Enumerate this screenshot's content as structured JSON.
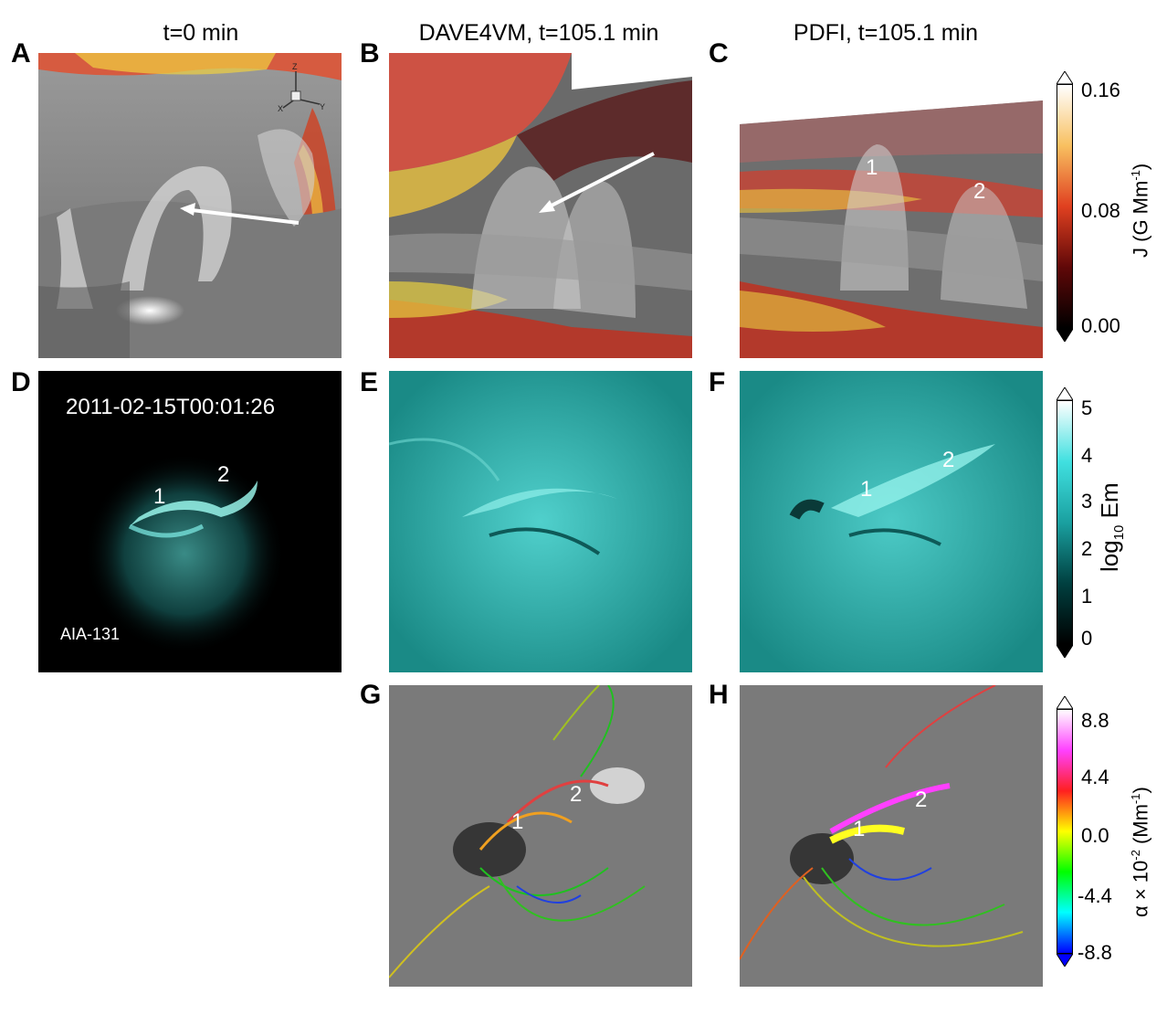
{
  "columns": {
    "a": "t=0 min",
    "b": "DAVE4VM, t=105.1 min",
    "c": "PDFI, t=105.1 min"
  },
  "panel_labels": {
    "A": "A",
    "B": "B",
    "C": "C",
    "D": "D",
    "E": "E",
    "F": "F",
    "G": "G",
    "H": "H"
  },
  "panel_d": {
    "timestamp": "2011-02-15T00:01:26",
    "instrument": "AIA-131",
    "loop1": "1",
    "loop2": "2"
  },
  "panel_c": {
    "loop1": "1",
    "loop2": "2"
  },
  "panel_f": {
    "loop1": "1",
    "loop2": "2"
  },
  "panel_g": {
    "loop1": "1",
    "loop2": "2"
  },
  "panel_h": {
    "loop1": "1",
    "loop2": "2"
  },
  "axes_triad": {
    "x": "X",
    "y": "Y",
    "z": "Z"
  },
  "colorbar_j": {
    "label_main": "J (G Mm",
    "label_sup": "-1",
    "label_end": ")",
    "ticks": [
      "0.16",
      "0.08",
      "0.00"
    ],
    "colors": [
      "#ffffff",
      "#f8c060",
      "#e04020",
      "#600808",
      "#000000"
    ]
  },
  "colorbar_em": {
    "label_pre": "log",
    "label_sub": "10",
    "label_post": " Em",
    "ticks": [
      "5",
      "4",
      "3",
      "2",
      "1",
      "0"
    ],
    "colors": [
      "#ffffff",
      "#40e0e0",
      "#1aa0a0",
      "#004040",
      "#000000"
    ]
  },
  "colorbar_alpha": {
    "label_pre": "α × 10",
    "label_sup1": "-2",
    "label_mid": " (Mm",
    "label_sup2": "-1",
    "label_end": ")",
    "ticks": [
      "8.8",
      "4.4",
      "0.0",
      "-4.4",
      "-8.8"
    ],
    "colors": [
      "#ffffff",
      "#ff40ff",
      "#ff2020",
      "#ffff00",
      "#00ff00",
      "#00ffff",
      "#0000ff"
    ]
  }
}
